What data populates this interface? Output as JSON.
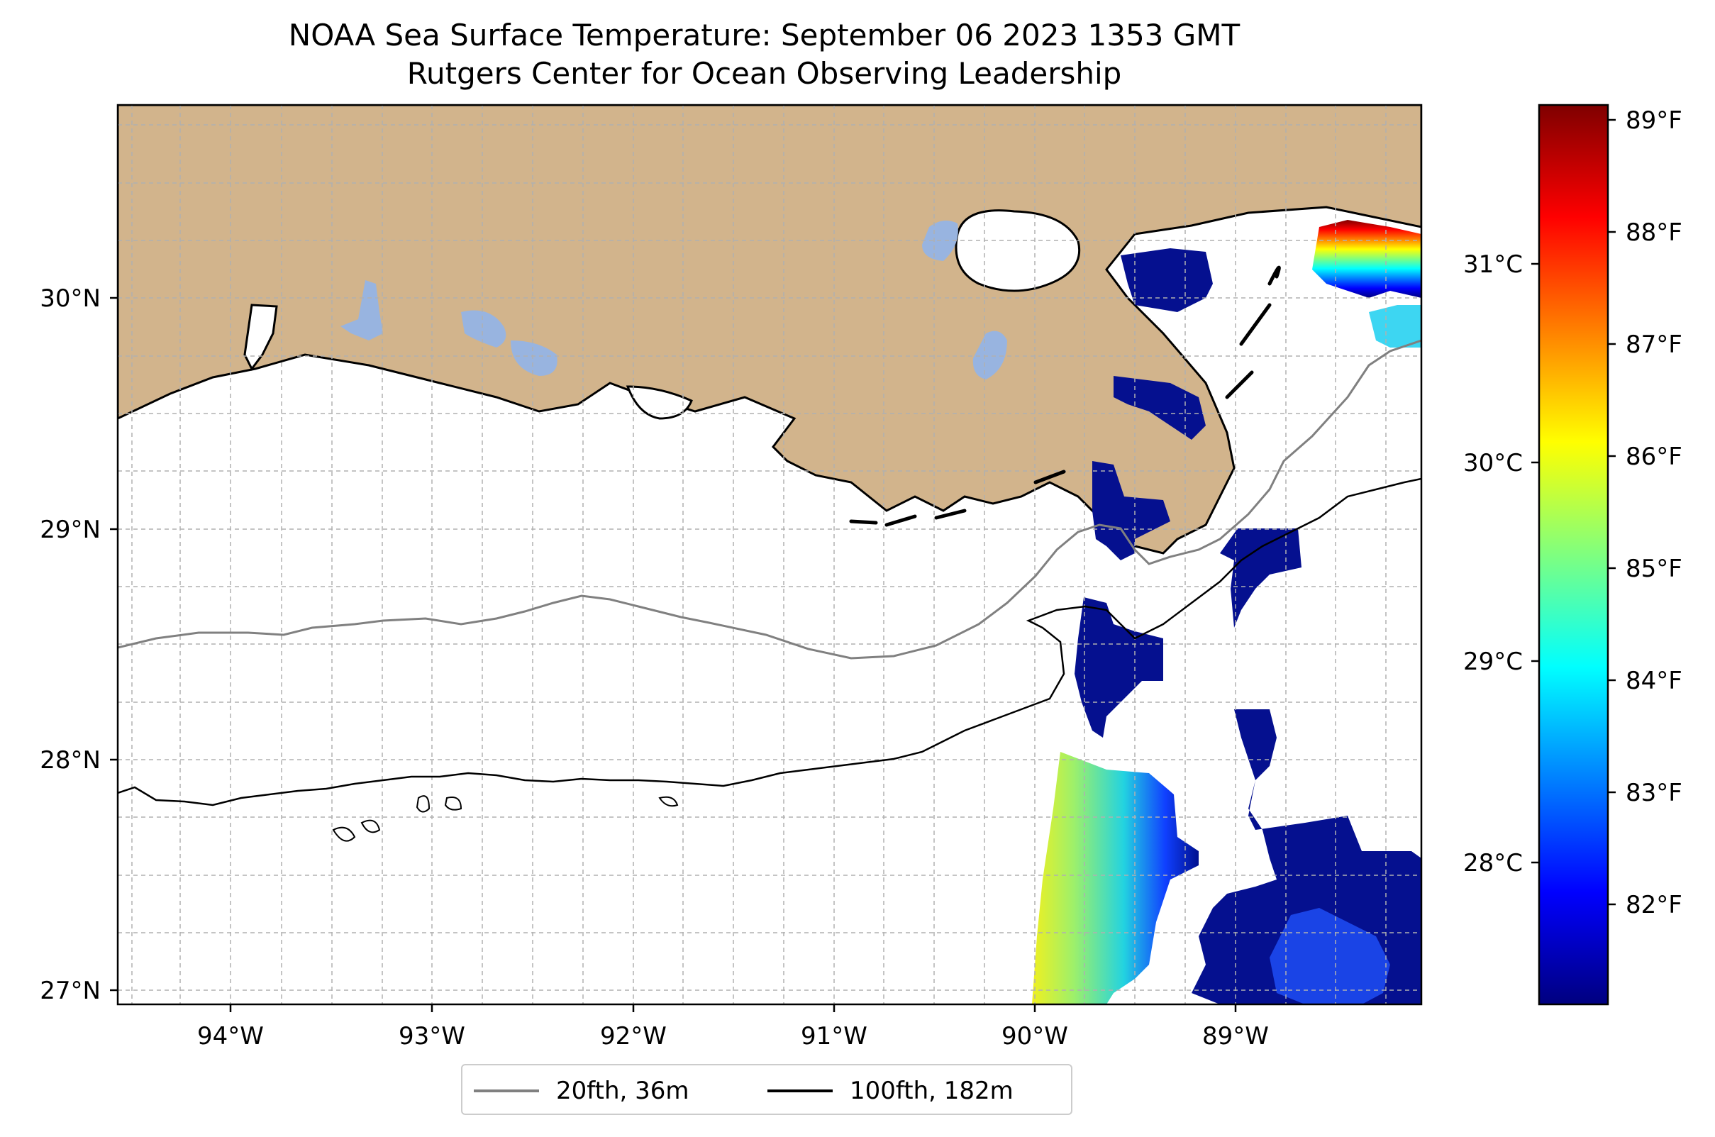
{
  "title": "NOAA Sea Surface Temperature: September 06 2023 1353 GMT",
  "subtitle": "Rutgers Center for Ocean Observing Leadership",
  "map": {
    "lon_range": [
      -94.55,
      -88.2
    ],
    "lat_range": [
      26.95,
      30.85
    ],
    "x_ticks": [
      "94°W",
      "93°W",
      "92°W",
      "91°W",
      "90°W",
      "89°W"
    ],
    "y_ticks": [
      "27°N",
      "28°N",
      "29°N",
      "30°N"
    ],
    "colors": {
      "land": "#d2b48c",
      "lakes": "#98b4e0",
      "ocean": "#ffffff",
      "grid": "#b0b0b0"
    }
  },
  "colorbar": {
    "colormap": "jet",
    "fahrenheit_ticks": [
      "82°F",
      "83°F",
      "84°F",
      "85°F",
      "86°F",
      "87°F",
      "88°F",
      "89°F"
    ],
    "celsius_ticks": [
      "28°C",
      "29°C",
      "30°C",
      "31°C"
    ]
  },
  "legend": {
    "items": [
      {
        "label": "20fth, 36m",
        "color": "#808080"
      },
      {
        "label": "100fth, 182m",
        "color": "#000000"
      }
    ],
    "placement": "bottom-center"
  }
}
